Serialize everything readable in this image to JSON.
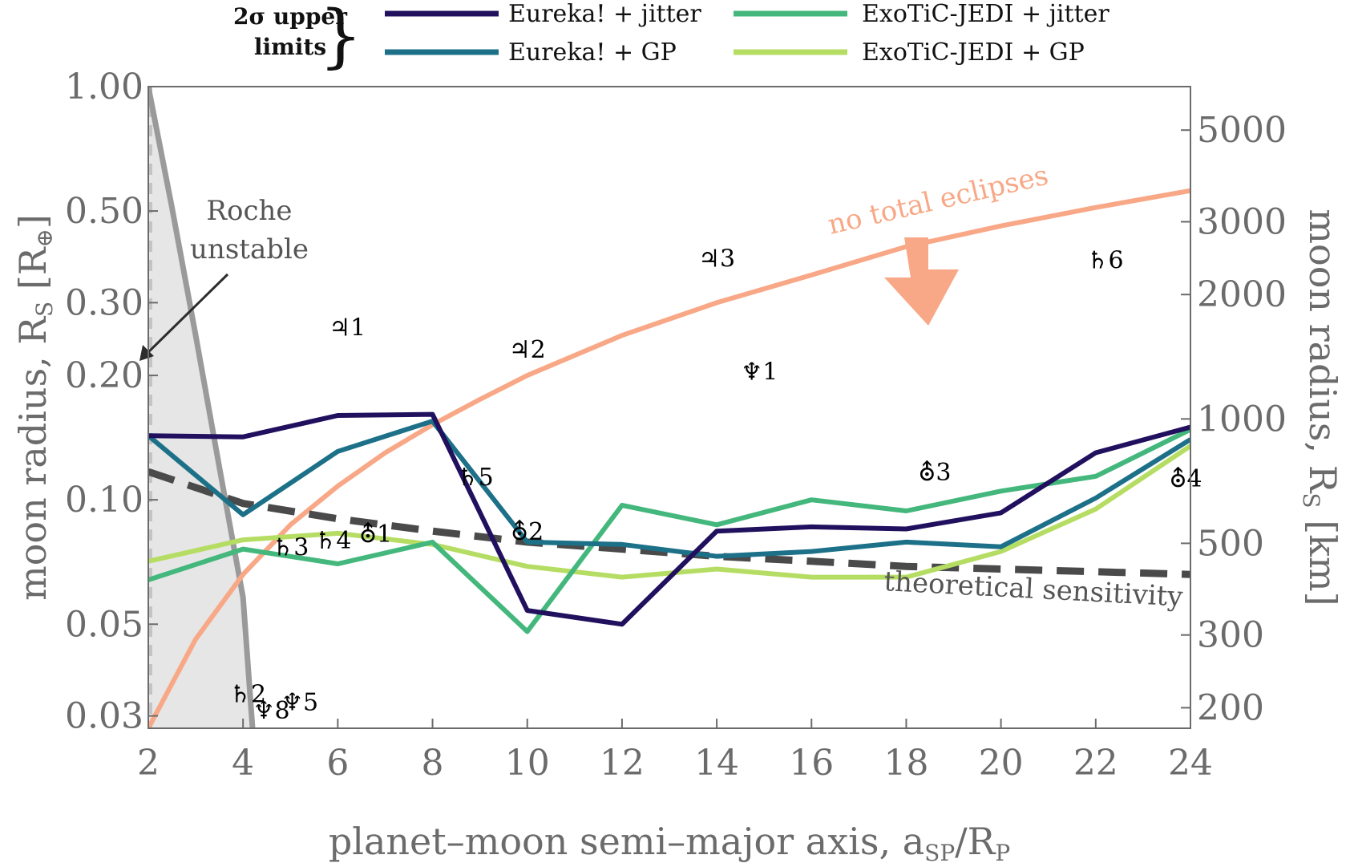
{
  "chart_data": {
    "type": "line",
    "xlabel": "planet–moon semi–major axis, a",
    "xlabel_sub": "SP",
    "xlabel_tail": "/R",
    "xlabel_tail_sub": "P",
    "ylabel_left": "moon radius, R",
    "ylabel_left_sub": "S",
    "ylabel_left_unit": "[R",
    "ylabel_left_unit_sub": "⊕",
    "ylabel_left_unit_close": "]",
    "ylabel_right": "moon radius, R",
    "ylabel_right_sub": "S",
    "ylabel_right_unit": "[km]",
    "xlim": [
      2,
      24
    ],
    "ylim": [
      0.028,
      1.0
    ],
    "y_scale": "log",
    "yright_lim_km": [
      178.4,
      6371
    ],
    "xticks": [
      "2",
      "4",
      "6",
      "8",
      "10",
      "12",
      "14",
      "16",
      "18",
      "20",
      "22",
      "24"
    ],
    "xtick_values": [
      2,
      4,
      6,
      8,
      10,
      12,
      14,
      16,
      18,
      20,
      22,
      24
    ],
    "yticks_left": [
      "1.00",
      "0.50",
      "0.30",
      "0.20",
      "0.10",
      "0.05",
      "0.03"
    ],
    "ytick_left_values": [
      1.0,
      0.5,
      0.3,
      0.2,
      0.1,
      0.05,
      0.03
    ],
    "yticks_right": [
      "5000",
      "3000",
      "2000",
      "1000",
      "500",
      "300",
      "200"
    ],
    "ytick_right_values": [
      5000,
      3000,
      2000,
      1000,
      500,
      300,
      200
    ],
    "legend": {
      "placement": "top",
      "group_label_line1": "2σ upper",
      "group_label_line2": "limits",
      "brace": "}"
    },
    "series": [
      {
        "name": "Eureka! + jitter",
        "color": "#21105e",
        "x": [
          2,
          4,
          6,
          8,
          10,
          12,
          14,
          16,
          18,
          20,
          22,
          24
        ],
        "values": [
          0.143,
          0.142,
          0.16,
          0.161,
          0.054,
          0.05,
          0.084,
          0.086,
          0.085,
          0.093,
          0.13,
          0.15
        ]
      },
      {
        "name": "Eureka! + GP",
        "color": "#1c7088",
        "x": [
          2,
          4,
          6,
          8,
          10,
          12,
          14,
          16,
          18,
          20,
          22,
          24
        ],
        "values": [
          0.143,
          0.092,
          0.131,
          0.155,
          0.079,
          0.078,
          0.073,
          0.075,
          0.079,
          0.077,
          0.101,
          0.14
        ]
      },
      {
        "name": "ExoTiC-JEDI + jitter",
        "color": "#43b77c",
        "x": [
          2,
          4,
          6,
          8,
          10,
          12,
          14,
          16,
          18,
          20,
          22,
          24
        ],
        "values": [
          0.064,
          0.076,
          0.07,
          0.079,
          0.048,
          0.097,
          0.087,
          0.1,
          0.094,
          0.105,
          0.114,
          0.148
        ]
      },
      {
        "name": "ExoTiC-JEDI + GP",
        "color": "#b6dd63",
        "x": [
          2,
          4,
          6,
          8,
          10,
          12,
          14,
          16,
          18,
          20,
          22,
          24
        ],
        "values": [
          0.071,
          0.08,
          0.083,
          0.078,
          0.069,
          0.065,
          0.068,
          0.065,
          0.065,
          0.075,
          0.095,
          0.135
        ]
      }
    ],
    "theoretical_sensitivity": {
      "label": "theoretical sensitivity",
      "color": "#4a4a4a",
      "x": [
        2,
        4,
        6,
        8,
        10,
        12,
        14,
        16,
        18,
        20,
        22,
        24
      ],
      "values": [
        0.117,
        0.098,
        0.09,
        0.084,
        0.079,
        0.076,
        0.073,
        0.071,
        0.069,
        0.068,
        0.067,
        0.066
      ]
    },
    "no_total_eclipses": {
      "label": "no total eclipses",
      "color": "#f8a886",
      "x": [
        2,
        3,
        4,
        5,
        6,
        7,
        8,
        9,
        10,
        12,
        14,
        16,
        18,
        20,
        22,
        24
      ],
      "values": [
        0.028,
        0.046,
        0.066,
        0.087,
        0.108,
        0.13,
        0.152,
        0.175,
        0.2,
        0.25,
        0.3,
        0.35,
        0.41,
        0.46,
        0.51,
        0.56
      ]
    },
    "roche": {
      "label_line1": "Roche",
      "label_line2": "unstable",
      "fill": "#e6e6e6",
      "line_color": "#9a9a9a",
      "x": [
        2,
        2.5,
        3,
        3.5,
        4.0,
        4.2
      ],
      "values": [
        1.0,
        0.51,
        0.25,
        0.12,
        0.058,
        0.028
      ]
    },
    "moons": [
      {
        "symbol": "♃",
        "num": "1",
        "x": 6.2,
        "y": 0.262
      },
      {
        "symbol": "♃",
        "num": "2",
        "x": 10.0,
        "y": 0.232
      },
      {
        "symbol": "♃",
        "num": "3",
        "x": 14.0,
        "y": 0.385
      },
      {
        "symbol": "♄",
        "num": "2",
        "x": 4.1,
        "y": 0.034
      },
      {
        "symbol": "♄",
        "num": "3",
        "x": 5.0,
        "y": 0.077
      },
      {
        "symbol": "♄",
        "num": "4",
        "x": 5.9,
        "y": 0.08
      },
      {
        "symbol": "♄",
        "num": "5",
        "x": 8.9,
        "y": 0.114
      },
      {
        "symbol": "♄",
        "num": "6",
        "x": 22.2,
        "y": 0.382
      },
      {
        "symbol": "⛢",
        "num": "1",
        "x": 6.8,
        "y": 0.083
      },
      {
        "symbol": "⛢",
        "num": "2",
        "x": 10.0,
        "y": 0.084
      },
      {
        "symbol": "⛢",
        "num": "3",
        "x": 18.6,
        "y": 0.117
      },
      {
        "symbol": "⛢",
        "num": "4",
        "x": 23.9,
        "y": 0.113
      },
      {
        "symbol": "♆",
        "num": "1",
        "x": 14.9,
        "y": 0.205
      },
      {
        "symbol": "♆",
        "num": "5",
        "x": 5.2,
        "y": 0.0325
      },
      {
        "symbol": "♆",
        "num": "8",
        "x": 4.6,
        "y": 0.031
      }
    ]
  }
}
